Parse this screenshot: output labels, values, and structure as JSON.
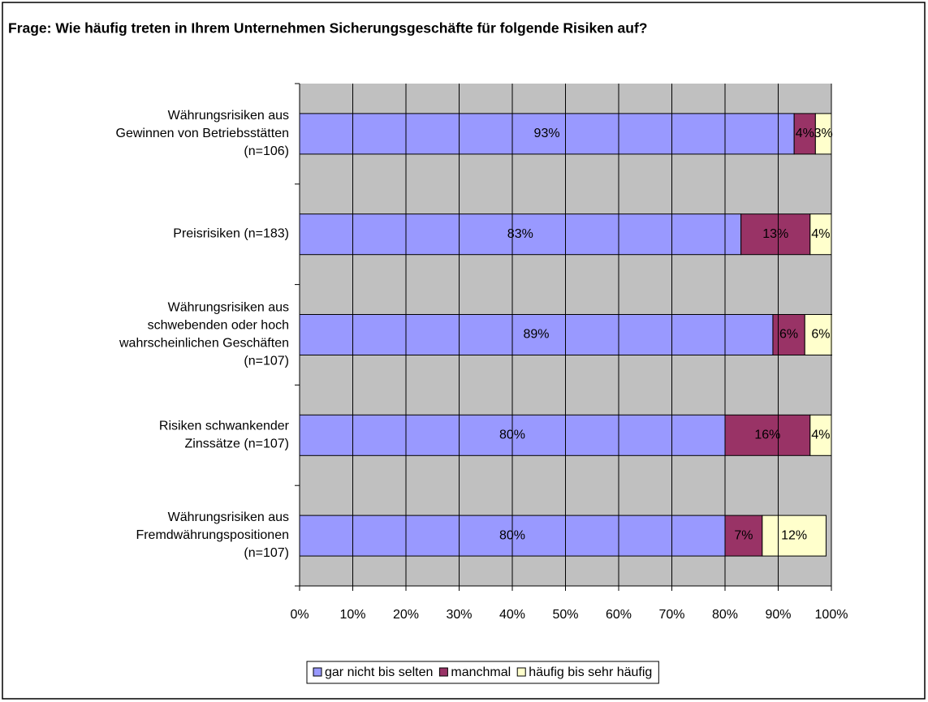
{
  "chart_data": {
    "type": "bar",
    "orientation": "horizontal",
    "stacked": true,
    "title": "Frage: Wie häufig treten in Ihrem Unternehmen Sicherungsgeschäfte für folgende Risiken auf?",
    "categories": [
      "Währungsrisiken aus\nGewinnen von Betriebsstätten\n(n=106)",
      "Preisrisiken (n=183)",
      "Währungsrisiken aus\nschwebenden oder hoch\nwahrscheinlichen Geschäften\n(n=107)",
      "Risiken schwankender\nZinssätze (n=107)",
      "Währungsrisiken aus\nFremdwährungspositionen\n(n=107)"
    ],
    "series": [
      {
        "name": "gar nicht bis selten",
        "color": "#9999ff",
        "values": [
          93,
          83,
          89,
          80,
          80
        ],
        "value_labels": [
          "93%",
          "83%",
          "89%",
          "80%",
          "80%"
        ]
      },
      {
        "name": "manchmal",
        "color": "#993366",
        "values": [
          4,
          13,
          6,
          16,
          7
        ],
        "value_labels": [
          "4%",
          "13%",
          "6%",
          "16%",
          "7%"
        ]
      },
      {
        "name": "häufig bis sehr häufig",
        "color": "#ffffcc",
        "values": [
          3,
          4,
          6,
          4,
          12
        ],
        "value_labels": [
          "3%",
          "4%",
          "6%",
          "4%",
          "12%"
        ]
      }
    ],
    "xlim": [
      0,
      100
    ],
    "xticks": [
      {
        "value": 0,
        "label": "0%"
      },
      {
        "value": 10,
        "label": "10%"
      },
      {
        "value": 20,
        "label": "20%"
      },
      {
        "value": 30,
        "label": "30%"
      },
      {
        "value": 40,
        "label": "40%"
      },
      {
        "value": 50,
        "label": "50%"
      },
      {
        "value": 60,
        "label": "60%"
      },
      {
        "value": 70,
        "label": "70%"
      },
      {
        "value": 80,
        "label": "80%"
      },
      {
        "value": 90,
        "label": "90%"
      },
      {
        "value": 100,
        "label": "100%"
      }
    ],
    "grid": true,
    "legend": "bottom"
  }
}
